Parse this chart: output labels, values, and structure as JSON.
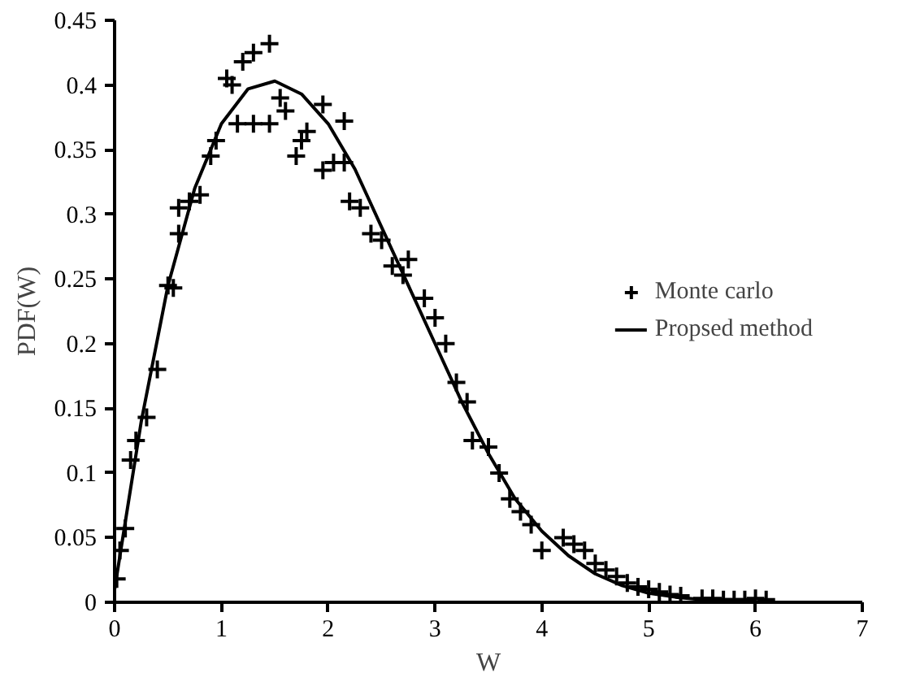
{
  "chart_data": {
    "type": "scatter",
    "xlabel": "W",
    "ylabel": "PDF(W)",
    "xlim": [
      0,
      7
    ],
    "ylim": [
      0,
      0.45
    ],
    "xticks": [
      0,
      1,
      2,
      3,
      4,
      5,
      6,
      7
    ],
    "yticks": [
      0,
      0.05,
      0.1,
      0.15,
      0.2,
      0.25,
      0.3,
      0.35,
      0.4,
      0.45
    ],
    "grid": false,
    "legend": "right",
    "series": [
      {
        "name": "Monte carlo",
        "marker": "cross",
        "color": "#000000",
        "x": [
          0.02,
          0.05,
          0.1,
          0.15,
          0.2,
          0.3,
          0.4,
          0.5,
          0.55,
          0.6,
          0.6,
          0.7,
          0.8,
          0.9,
          0.95,
          1.05,
          1.1,
          1.15,
          1.2,
          1.3,
          1.3,
          1.45,
          1.45,
          1.55,
          1.6,
          1.7,
          1.75,
          1.8,
          1.95,
          1.95,
          2.05,
          2.15,
          2.15,
          2.2,
          2.3,
          2.4,
          2.5,
          2.6,
          2.7,
          2.75,
          2.9,
          3.0,
          3.1,
          3.2,
          3.3,
          3.35,
          3.5,
          3.6,
          3.7,
          3.8,
          3.9,
          4.0,
          4.2,
          4.3,
          4.4,
          4.5,
          4.6,
          4.7,
          4.8,
          4.9,
          5.0,
          5.1,
          5.2,
          5.3,
          5.5,
          5.6,
          5.7,
          5.8,
          5.9,
          6.0,
          6.1
        ],
        "values": [
          0.018,
          0.04,
          0.057,
          0.11,
          0.125,
          0.143,
          0.18,
          0.245,
          0.243,
          0.285,
          0.305,
          0.31,
          0.315,
          0.345,
          0.357,
          0.405,
          0.4,
          0.37,
          0.418,
          0.425,
          0.37,
          0.432,
          0.37,
          0.39,
          0.38,
          0.345,
          0.357,
          0.364,
          0.385,
          0.334,
          0.34,
          0.372,
          0.34,
          0.31,
          0.305,
          0.285,
          0.28,
          0.26,
          0.253,
          0.265,
          0.235,
          0.22,
          0.2,
          0.17,
          0.155,
          0.125,
          0.12,
          0.1,
          0.08,
          0.07,
          0.06,
          0.04,
          0.05,
          0.045,
          0.04,
          0.03,
          0.025,
          0.02,
          0.015,
          0.012,
          0.01,
          0.008,
          0.006,
          0.005,
          0.003,
          0.003,
          0.002,
          0.002,
          0.002,
          0.003,
          0.002
        ]
      },
      {
        "name": "Propsed method",
        "type": "line",
        "marker": "none",
        "line_style": "solid",
        "color": "#000000",
        "x": [
          0,
          0.25,
          0.5,
          0.75,
          1.0,
          1.25,
          1.5,
          1.75,
          2.0,
          2.25,
          2.5,
          2.75,
          3.0,
          3.25,
          3.5,
          3.75,
          4.0,
          4.25,
          4.5,
          4.75,
          5.0,
          5.25,
          5.5,
          5.75,
          6.0
        ],
        "values": [
          0.01,
          0.14,
          0.245,
          0.32,
          0.37,
          0.397,
          0.403,
          0.393,
          0.37,
          0.335,
          0.29,
          0.245,
          0.2,
          0.155,
          0.115,
          0.08,
          0.055,
          0.036,
          0.022,
          0.013,
          0.007,
          0.004,
          0.002,
          0.001,
          0.001
        ]
      }
    ]
  }
}
